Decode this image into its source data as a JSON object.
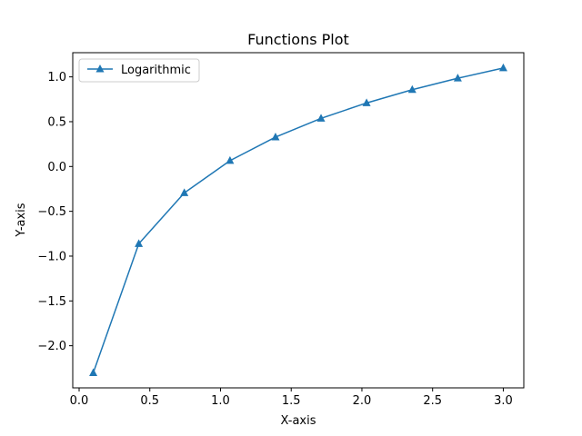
{
  "colors": {
    "series": "#1f77b4",
    "axes": "#000000",
    "legend_border": "#cccccc",
    "background": "#ffffff"
  },
  "chart_data": {
    "type": "line",
    "title": "Functions Plot",
    "xlabel": "X-axis",
    "ylabel": "Y-axis",
    "xlim": [
      -0.045,
      3.145
    ],
    "ylim": [
      -2.47,
      1.27
    ],
    "grid": false,
    "legend_position": "top-left",
    "x_ticks": [
      {
        "value": 0.0,
        "label": "0.0"
      },
      {
        "value": 0.5,
        "label": "0.5"
      },
      {
        "value": 1.0,
        "label": "1.0"
      },
      {
        "value": 1.5,
        "label": "1.5"
      },
      {
        "value": 2.0,
        "label": "2.0"
      },
      {
        "value": 2.5,
        "label": "2.5"
      },
      {
        "value": 3.0,
        "label": "3.0"
      }
    ],
    "y_ticks": [
      {
        "value": 1.0,
        "label": "1.0"
      },
      {
        "value": 0.5,
        "label": "0.5"
      },
      {
        "value": 0.0,
        "label": "0.0"
      },
      {
        "value": -0.5,
        "label": "−0.5"
      },
      {
        "value": -1.0,
        "label": "−1.0"
      },
      {
        "value": -1.5,
        "label": "−1.5"
      },
      {
        "value": -2.0,
        "label": "−2.0"
      }
    ],
    "series": [
      {
        "name": "Logarithmic",
        "marker": "triangle-up",
        "color": "#1f77b4",
        "x": [
          0.1,
          0.422,
          0.744,
          1.067,
          1.389,
          1.711,
          2.033,
          2.356,
          2.678,
          3.0
        ],
        "y": [
          -2.303,
          -0.862,
          -0.295,
          0.065,
          0.328,
          0.537,
          0.709,
          0.857,
          0.985,
          1.099
        ]
      }
    ]
  }
}
